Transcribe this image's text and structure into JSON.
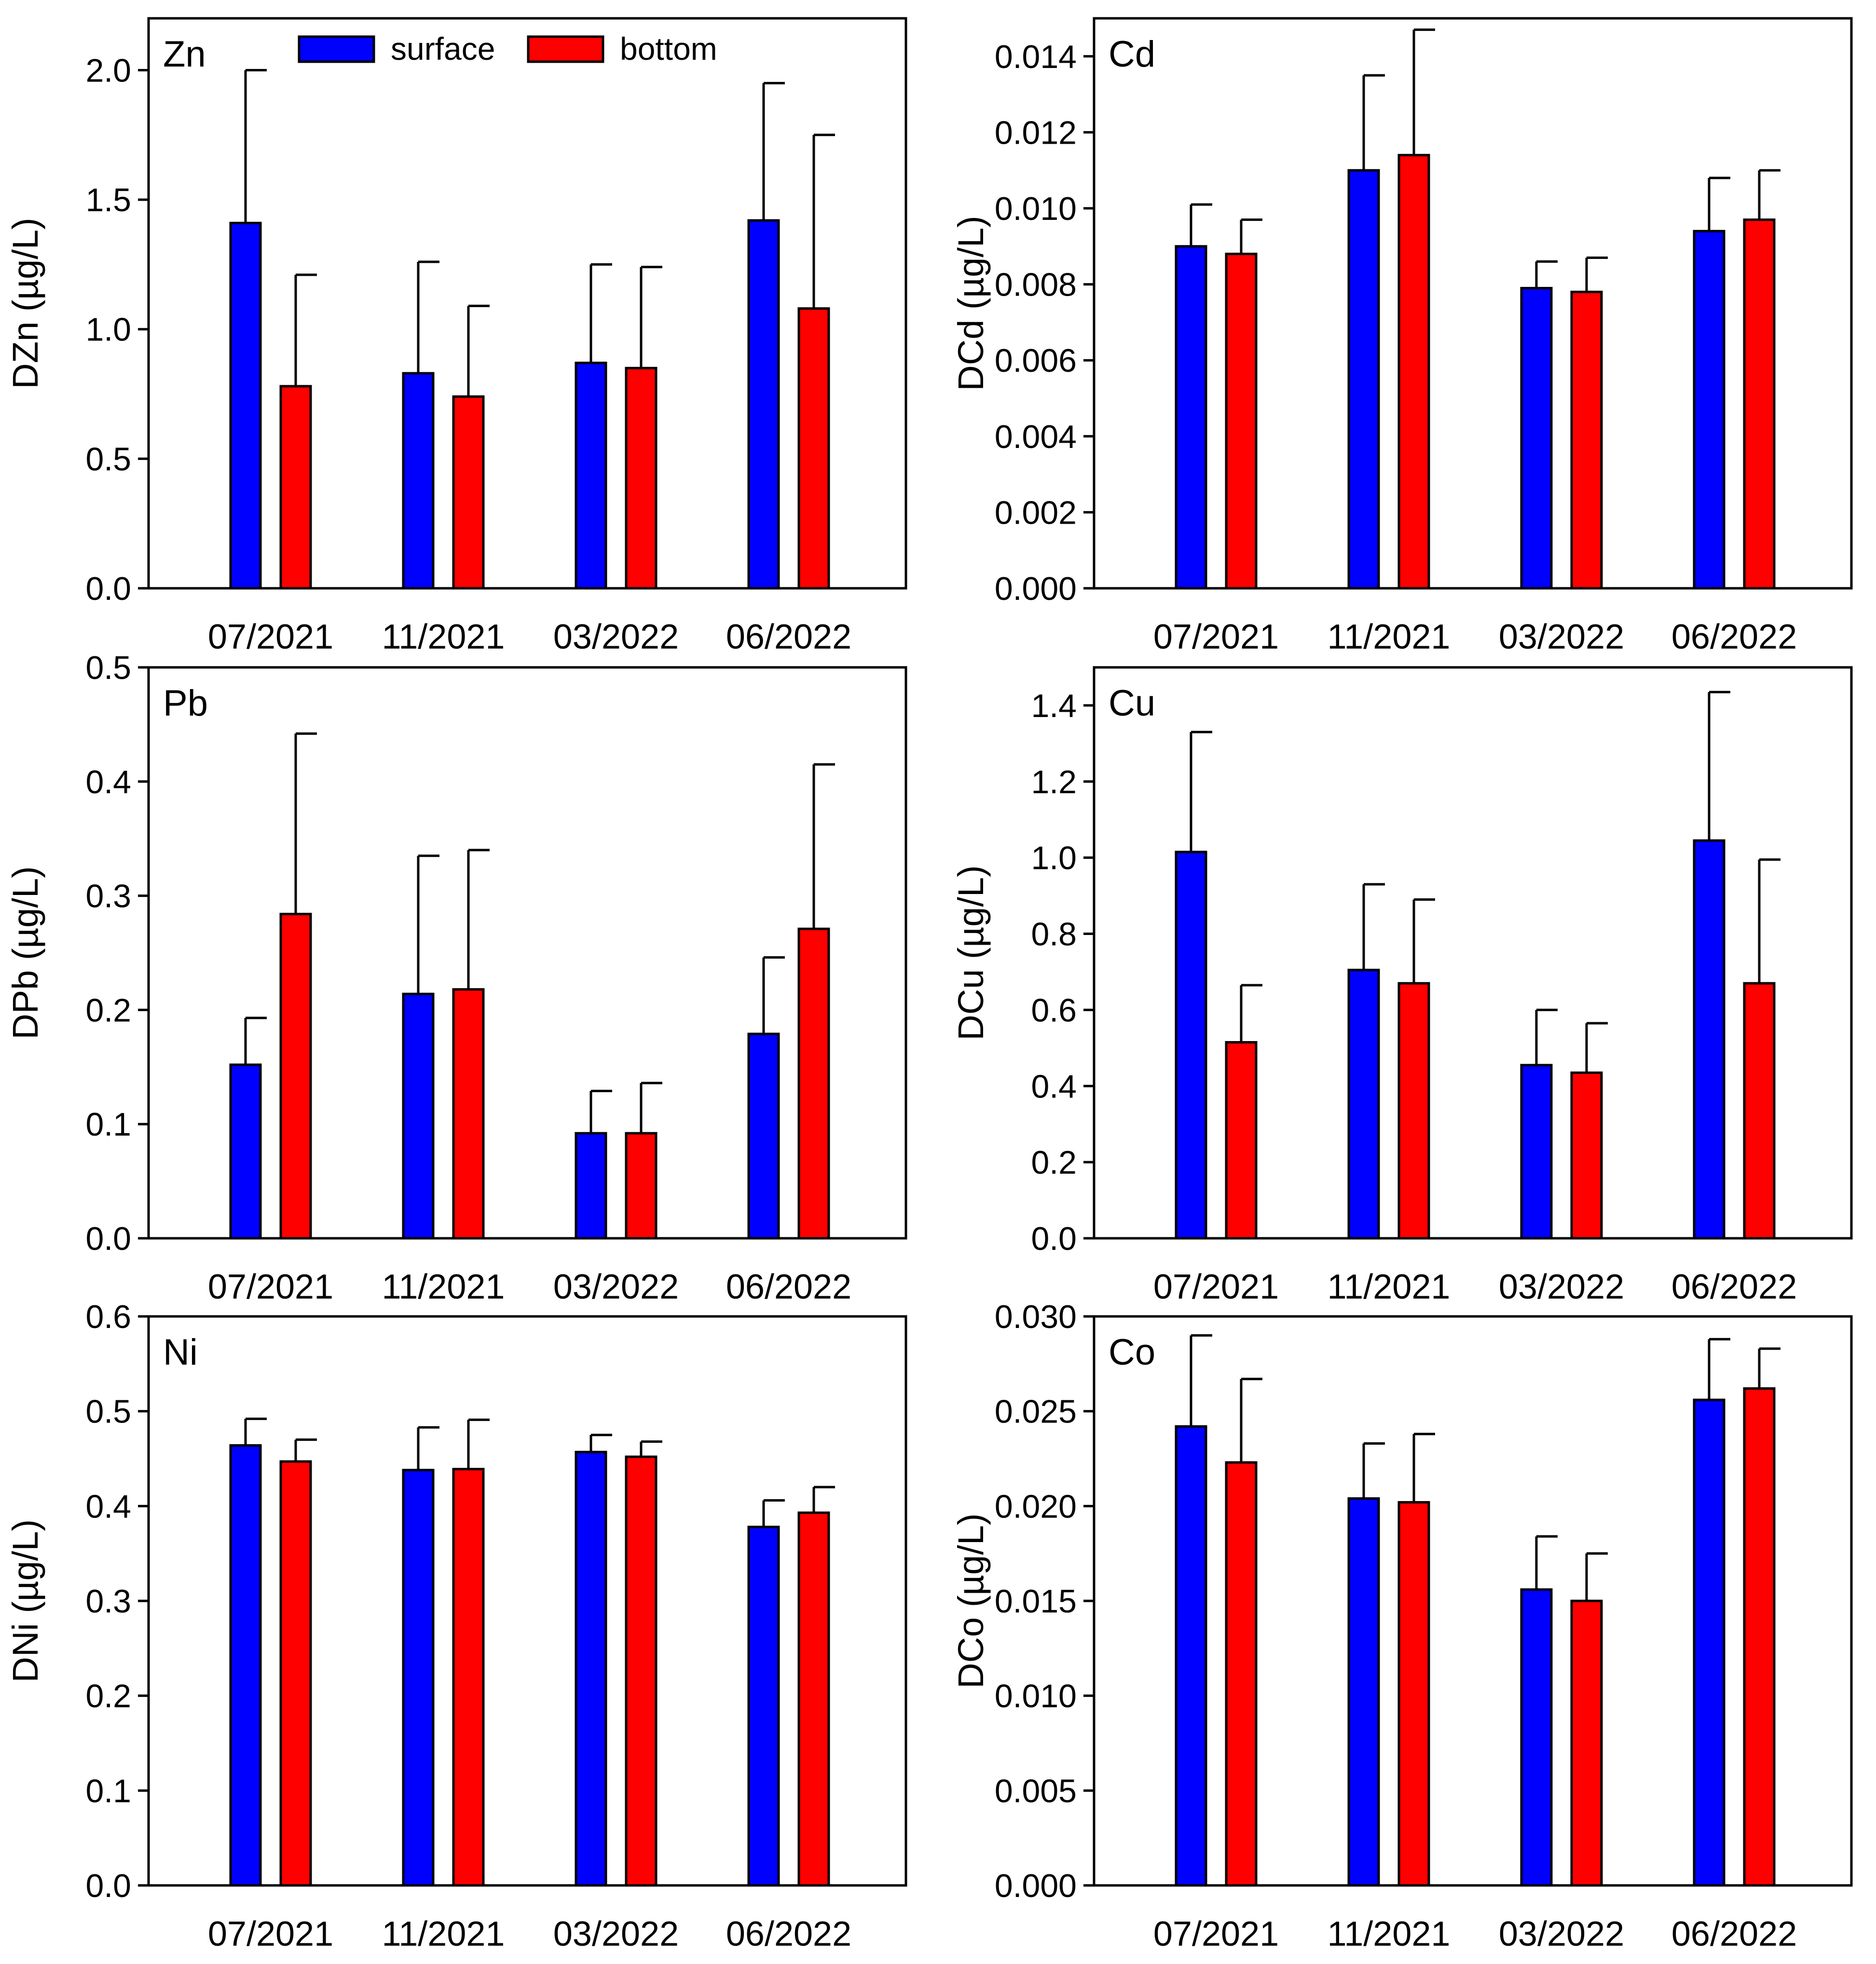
{
  "chart_data": [
    {
      "type": "bar",
      "panel_label": "Zn",
      "ylabel": "DZn (µg/L)",
      "categories": [
        "07/2021",
        "11/2021",
        "03/2022",
        "06/2022"
      ],
      "ylim": [
        0,
        2.2
      ],
      "yticks": [
        "0.0",
        "0.5",
        "1.0",
        "1.5",
        "2.0"
      ],
      "legend": {
        "position": "top",
        "entries": [
          "surface",
          "bottom"
        ]
      },
      "series": [
        {
          "name": "surface",
          "color": "#0000ff",
          "values": [
            1.41,
            0.83,
            0.87,
            1.42
          ],
          "errors": [
            0.59,
            0.43,
            0.38,
            0.53
          ]
        },
        {
          "name": "bottom",
          "color": "#ff0000",
          "values": [
            0.78,
            0.74,
            0.85,
            1.08
          ],
          "errors": [
            0.43,
            0.35,
            0.39,
            0.67
          ]
        }
      ]
    },
    {
      "type": "bar",
      "panel_label": "Cd",
      "ylabel": "DCd (µg/L)",
      "categories": [
        "07/2021",
        "11/2021",
        "03/2022",
        "06/2022"
      ],
      "ylim": [
        0,
        0.015
      ],
      "yticks": [
        "0.000",
        "0.002",
        "0.004",
        "0.006",
        "0.008",
        "0.010",
        "0.012",
        "0.014"
      ],
      "series": [
        {
          "name": "surface",
          "color": "#0000ff",
          "values": [
            0.009,
            0.011,
            0.0079,
            0.0094
          ],
          "errors": [
            0.0011,
            0.0025,
            0.0007,
            0.0014
          ]
        },
        {
          "name": "bottom",
          "color": "#ff0000",
          "values": [
            0.0088,
            0.0114,
            0.0078,
            0.0097
          ],
          "errors": [
            0.0009,
            0.0033,
            0.0009,
            0.0013
          ]
        }
      ]
    },
    {
      "type": "bar",
      "panel_label": "Pb",
      "ylabel": "DPb (µg/L)",
      "categories": [
        "07/2021",
        "11/2021",
        "03/2022",
        "06/2022"
      ],
      "ylim": [
        0,
        0.5
      ],
      "yticks": [
        "0.0",
        "0.1",
        "0.2",
        "0.3",
        "0.4",
        "0.5"
      ],
      "series": [
        {
          "name": "surface",
          "color": "#0000ff",
          "values": [
            0.152,
            0.214,
            0.092,
            0.179
          ],
          "errors": [
            0.041,
            0.121,
            0.037,
            0.067
          ]
        },
        {
          "name": "bottom",
          "color": "#ff0000",
          "values": [
            0.284,
            0.218,
            0.092,
            0.271
          ],
          "errors": [
            0.158,
            0.122,
            0.044,
            0.144
          ]
        }
      ]
    },
    {
      "type": "bar",
      "panel_label": "Cu",
      "ylabel": "DCu (µg/L)",
      "categories": [
        "07/2021",
        "11/2021",
        "03/2022",
        "06/2022"
      ],
      "ylim": [
        0,
        1.5
      ],
      "yticks": [
        "0.0",
        "0.2",
        "0.4",
        "0.6",
        "0.8",
        "1.0",
        "1.2",
        "1.4"
      ],
      "series": [
        {
          "name": "surface",
          "color": "#0000ff",
          "values": [
            1.015,
            0.705,
            0.455,
            1.045
          ],
          "errors": [
            0.315,
            0.225,
            0.145,
            0.39
          ]
        },
        {
          "name": "bottom",
          "color": "#ff0000",
          "values": [
            0.515,
            0.67,
            0.435,
            0.67
          ],
          "errors": [
            0.15,
            0.22,
            0.13,
            0.325
          ]
        }
      ]
    },
    {
      "type": "bar",
      "panel_label": "Ni",
      "ylabel": "DNi (µg/L)",
      "categories": [
        "07/2021",
        "11/2021",
        "03/2022",
        "06/2022"
      ],
      "ylim": [
        0,
        0.6
      ],
      "yticks": [
        "0.0",
        "0.1",
        "0.2",
        "0.3",
        "0.4",
        "0.5",
        "0.6"
      ],
      "series": [
        {
          "name": "surface",
          "color": "#0000ff",
          "values": [
            0.464,
            0.438,
            0.457,
            0.378
          ],
          "errors": [
            0.028,
            0.045,
            0.018,
            0.028
          ]
        },
        {
          "name": "bottom",
          "color": "#ff0000",
          "values": [
            0.447,
            0.439,
            0.452,
            0.393
          ],
          "errors": [
            0.023,
            0.052,
            0.016,
            0.027
          ]
        }
      ]
    },
    {
      "type": "bar",
      "panel_label": "Co",
      "ylabel": "DCo (µg/L)",
      "categories": [
        "07/2021",
        "11/2021",
        "03/2022",
        "06/2022"
      ],
      "ylim": [
        0,
        0.03
      ],
      "yticks": [
        "0.000",
        "0.005",
        "0.010",
        "0.015",
        "0.020",
        "0.025",
        "0.030"
      ],
      "series": [
        {
          "name": "surface",
          "color": "#0000ff",
          "values": [
            0.0242,
            0.0204,
            0.0156,
            0.0256
          ],
          "errors": [
            0.0048,
            0.0029,
            0.0028,
            0.0032
          ]
        },
        {
          "name": "bottom",
          "color": "#ff0000",
          "values": [
            0.0223,
            0.0202,
            0.015,
            0.0262
          ],
          "errors": [
            0.0044,
            0.0036,
            0.0025,
            0.0021
          ]
        }
      ]
    }
  ]
}
